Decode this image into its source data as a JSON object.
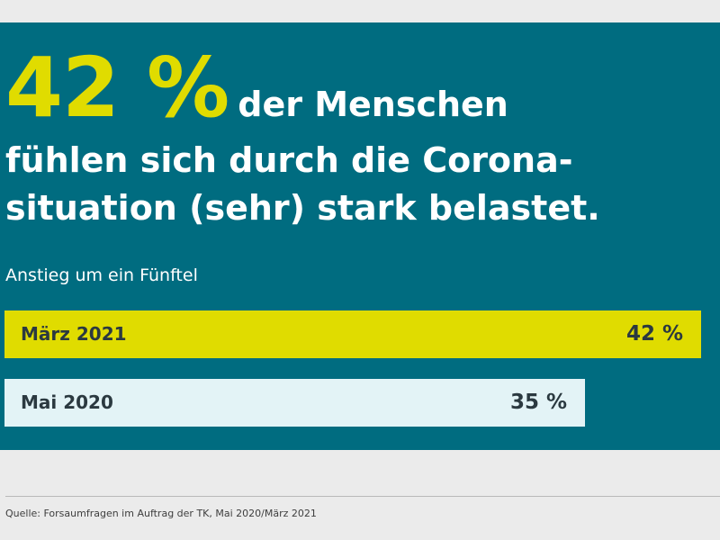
{
  "headline": {
    "big_number": "42 %",
    "line1_rest": "der Menschen",
    "line2": "fühlen sich durch die Corona-",
    "line3": "situation (sehr) stark belastet."
  },
  "subtitle": "Anstieg um ein Fünftel",
  "source": "Quelle: Forsaumfragen im Auftrag der TK, Mai 2020/März 2021",
  "colors": {
    "background": "#006c80",
    "highlight": "#e0dc00",
    "bar_2020": "#e3f3f6",
    "page": "#ebebeb",
    "bar_text": "#2b3940"
  },
  "chart_data": {
    "type": "bar",
    "orientation": "horizontal",
    "categories": [
      "März 2021",
      "Mai 2020"
    ],
    "values": [
      42,
      35
    ],
    "value_labels": [
      "42 %",
      "35 %"
    ],
    "unit": "%",
    "xlim": [
      0,
      42
    ],
    "grid": false,
    "colors": [
      "#e0dc00",
      "#e3f3f6"
    ]
  }
}
